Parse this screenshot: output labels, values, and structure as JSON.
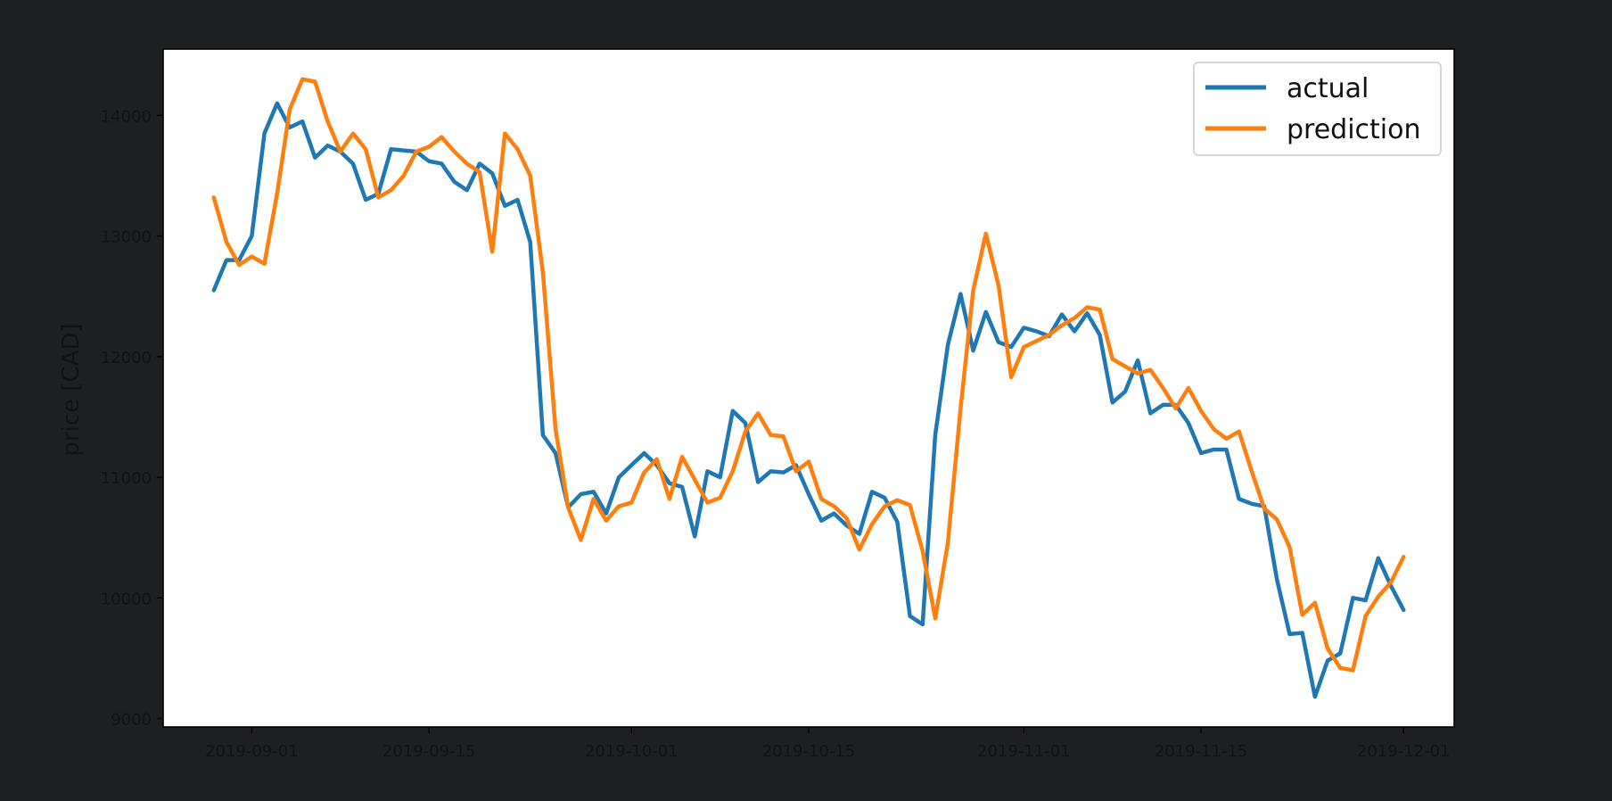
{
  "chart_data": {
    "type": "line",
    "title": "",
    "xlabel": "",
    "ylabel": "price [CAD]",
    "x_ticks": [
      "2019-09-01",
      "2019-09-15",
      "2019-10-01",
      "2019-10-15",
      "2019-11-01",
      "2019-11-15",
      "2019-12-01"
    ],
    "y_ticks": [
      9000,
      10000,
      11000,
      12000,
      13000,
      14000
    ],
    "xlim": [
      "2019-08-25",
      "2019-12-05"
    ],
    "ylim": [
      8930,
      14550
    ],
    "grid": false,
    "legend": "top-right",
    "x_start": "2019-08-29",
    "x_step_days": 1,
    "series": [
      {
        "name": "actual",
        "color": "#1f77b4",
        "values": [
          12550,
          12800,
          12800,
          13000,
          13850,
          14100,
          13900,
          13950,
          13650,
          13750,
          13700,
          13600,
          13300,
          13350,
          13720,
          13710,
          13700,
          13620,
          13600,
          13450,
          13380,
          13600,
          13520,
          13250,
          13300,
          12950,
          11350,
          11200,
          10750,
          10860,
          10880,
          10700,
          11000,
          11100,
          11200,
          11100,
          10950,
          10920,
          10510,
          11050,
          11000,
          11550,
          11450,
          10960,
          11050,
          11040,
          11100,
          10860,
          10640,
          10700,
          10600,
          10530,
          10880,
          10830,
          10630,
          9850,
          9780,
          11350,
          12100,
          12520,
          12050,
          12370,
          12120,
          12080,
          12240,
          12210,
          12170,
          12350,
          12210,
          12360,
          12180,
          11620,
          11710,
          11970,
          11530,
          11600,
          11600,
          11450,
          11200,
          11230,
          11230,
          10820,
          10780,
          10760,
          10150,
          9700,
          9710,
          9180,
          9480,
          9540,
          10000,
          9980,
          10330,
          10100,
          9900
        ]
      },
      {
        "name": "prediction",
        "color": "#ff7f0e",
        "values": [
          13320,
          12950,
          12760,
          12830,
          12770,
          13350,
          14050,
          14300,
          14280,
          13950,
          13700,
          13850,
          13720,
          13320,
          13380,
          13500,
          13700,
          13740,
          13820,
          13700,
          13600,
          13530,
          12870,
          13850,
          13720,
          13500,
          12700,
          11400,
          10750,
          10480,
          10820,
          10640,
          10760,
          10790,
          11040,
          11150,
          10820,
          11170,
          10980,
          10790,
          10830,
          11050,
          11380,
          11530,
          11350,
          11340,
          11050,
          11130,
          10820,
          10760,
          10660,
          10400,
          10610,
          10760,
          10810,
          10770,
          10390,
          9830,
          10460,
          11570,
          12550,
          13020,
          12590,
          11830,
          12080,
          12130,
          12180,
          12260,
          12320,
          12410,
          12390,
          11980,
          11920,
          11860,
          11890,
          11740,
          11570,
          11740,
          11550,
          11400,
          11320,
          11380,
          11050,
          10740,
          10650,
          10420,
          9860,
          9960,
          9580,
          9420,
          9400,
          9850,
          10010,
          10130,
          10340
        ]
      }
    ]
  }
}
